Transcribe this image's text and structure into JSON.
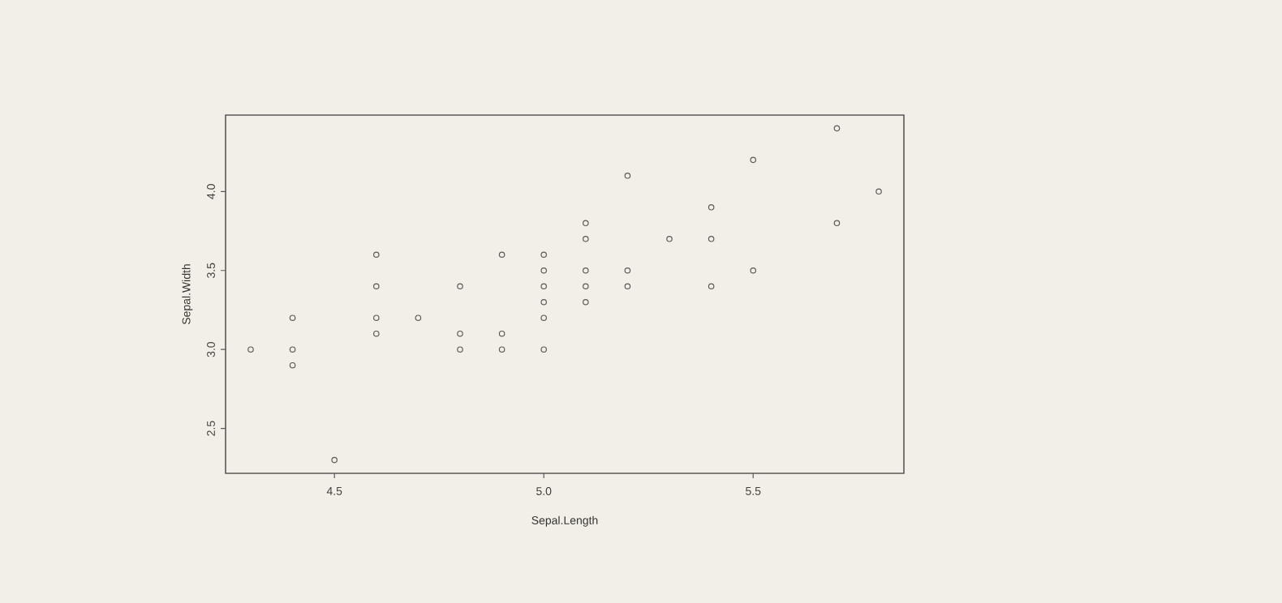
{
  "chart_data": {
    "type": "scatter",
    "xlabel": "Sepal.Length",
    "ylabel": "Sepal.Width",
    "marker": "circle",
    "color": "#5a5a5a",
    "x": [
      4.3,
      4.4,
      4.4,
      4.4,
      4.5,
      4.6,
      4.6,
      4.6,
      4.6,
      4.7,
      4.8,
      4.8,
      4.8,
      4.9,
      4.9,
      4.9,
      5.0,
      5.0,
      5.0,
      5.0,
      5.0,
      5.0,
      5.1,
      5.1,
      5.1,
      5.1,
      5.1,
      5.2,
      5.2,
      5.2,
      5.3,
      5.4,
      5.4,
      5.4,
      5.5,
      5.5,
      5.7,
      5.7,
      5.8
    ],
    "values": [
      3.0,
      3.2,
      3.0,
      2.9,
      2.3,
      3.6,
      3.4,
      3.2,
      3.1,
      3.2,
      3.4,
      3.1,
      3.0,
      3.6,
      3.1,
      3.0,
      3.6,
      3.5,
      3.4,
      3.3,
      3.2,
      3.0,
      3.8,
      3.7,
      3.5,
      3.4,
      3.3,
      4.1,
      3.5,
      3.4,
      3.7,
      3.9,
      3.7,
      3.4,
      4.2,
      3.5,
      4.4,
      3.8,
      4.0
    ],
    "xlim": [
      4.24,
      5.86
    ],
    "ylim": [
      2.216,
      4.484
    ],
    "xticks": [
      {
        "value": 4.5,
        "label": "4.5"
      },
      {
        "value": 5.0,
        "label": "5.0"
      },
      {
        "value": 5.5,
        "label": "5.5"
      }
    ],
    "yticks": [
      {
        "value": 2.5,
        "label": "2.5"
      },
      {
        "value": 3.0,
        "label": "3.0"
      },
      {
        "value": 3.5,
        "label": "3.5"
      },
      {
        "value": 4.0,
        "label": "4.0"
      }
    ]
  }
}
